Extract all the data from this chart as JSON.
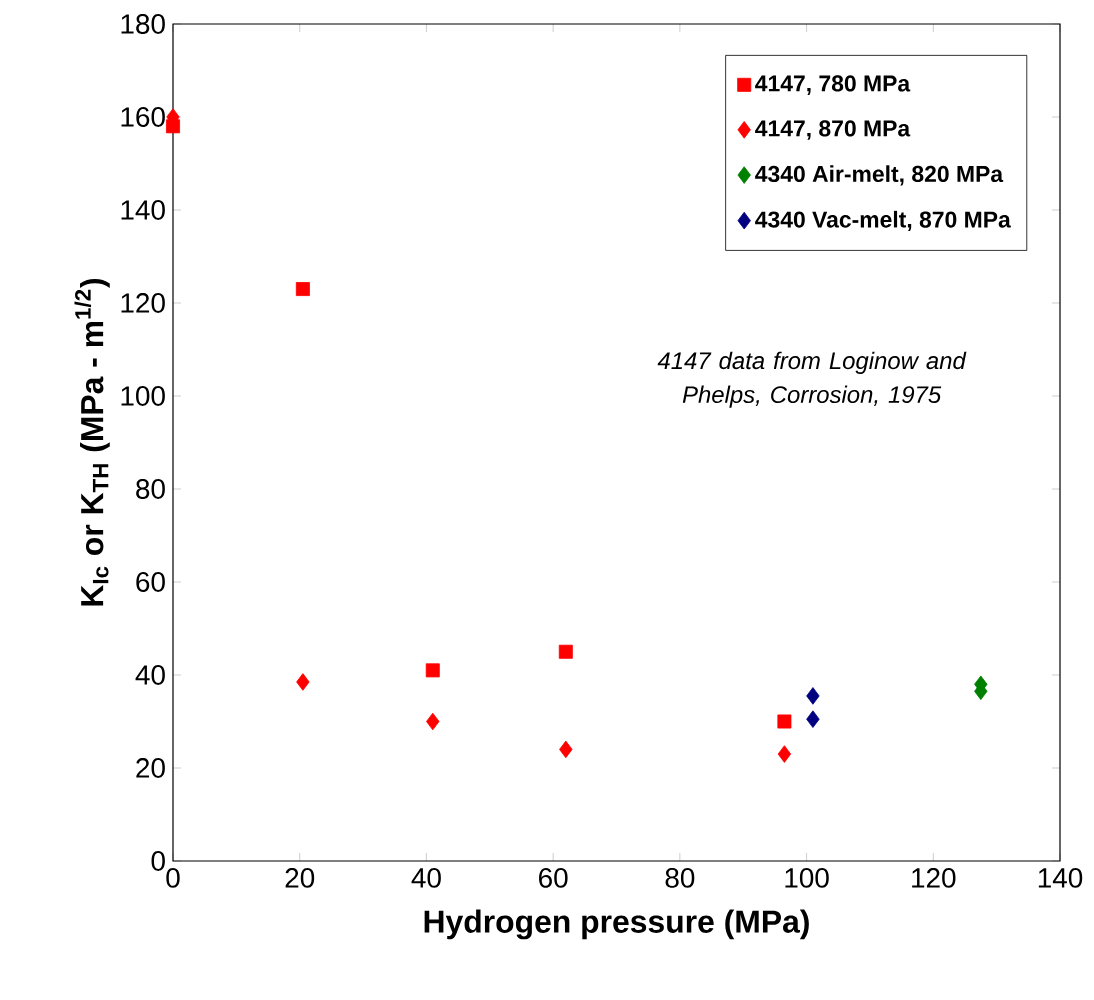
{
  "chart_data": {
    "type": "scatter",
    "xlabel": "Hydrogen pressure (MPa)",
    "ylabel": "K$_{Ic}$ or K$_{TH}$ (MPa - m$^{1/2}$)",
    "xlim": [
      0,
      140
    ],
    "ylim": [
      0,
      180
    ],
    "xticks": [
      0,
      20,
      40,
      60,
      80,
      100,
      120,
      140
    ],
    "yticks": [
      0,
      20,
      40,
      60,
      80,
      100,
      120,
      140,
      160,
      180
    ],
    "grid": false,
    "legend": "top right",
    "annotations": [
      "4147 data from Loginow and Phelps, Corrosion, 1975"
    ],
    "series": [
      {
        "name": "4147, 780 MPa",
        "color": "#ff0000",
        "marker": "square",
        "x": [
          0,
          20.5,
          41,
          62,
          96.5
        ],
        "values": [
          158,
          123,
          41,
          45,
          30
        ]
      },
      {
        "name": "4147, 870 MPa",
        "color": "#ff0000",
        "marker": "diamond",
        "x": [
          0,
          20.5,
          41,
          62,
          96.5
        ],
        "values": [
          160,
          38.5,
          30,
          24,
          23
        ]
      },
      {
        "name": "4340 Air-melt, 820 MPa",
        "color": "#008000",
        "marker": "diamond",
        "x": [
          127.5,
          127.5
        ],
        "values": [
          38,
          36.5
        ]
      },
      {
        "name": "4340 Vac-melt, 870 MPa",
        "color": "#000080",
        "marker": "diamond",
        "x": [
          101,
          101
        ],
        "values": [
          35.5,
          30.5
        ]
      }
    ]
  }
}
